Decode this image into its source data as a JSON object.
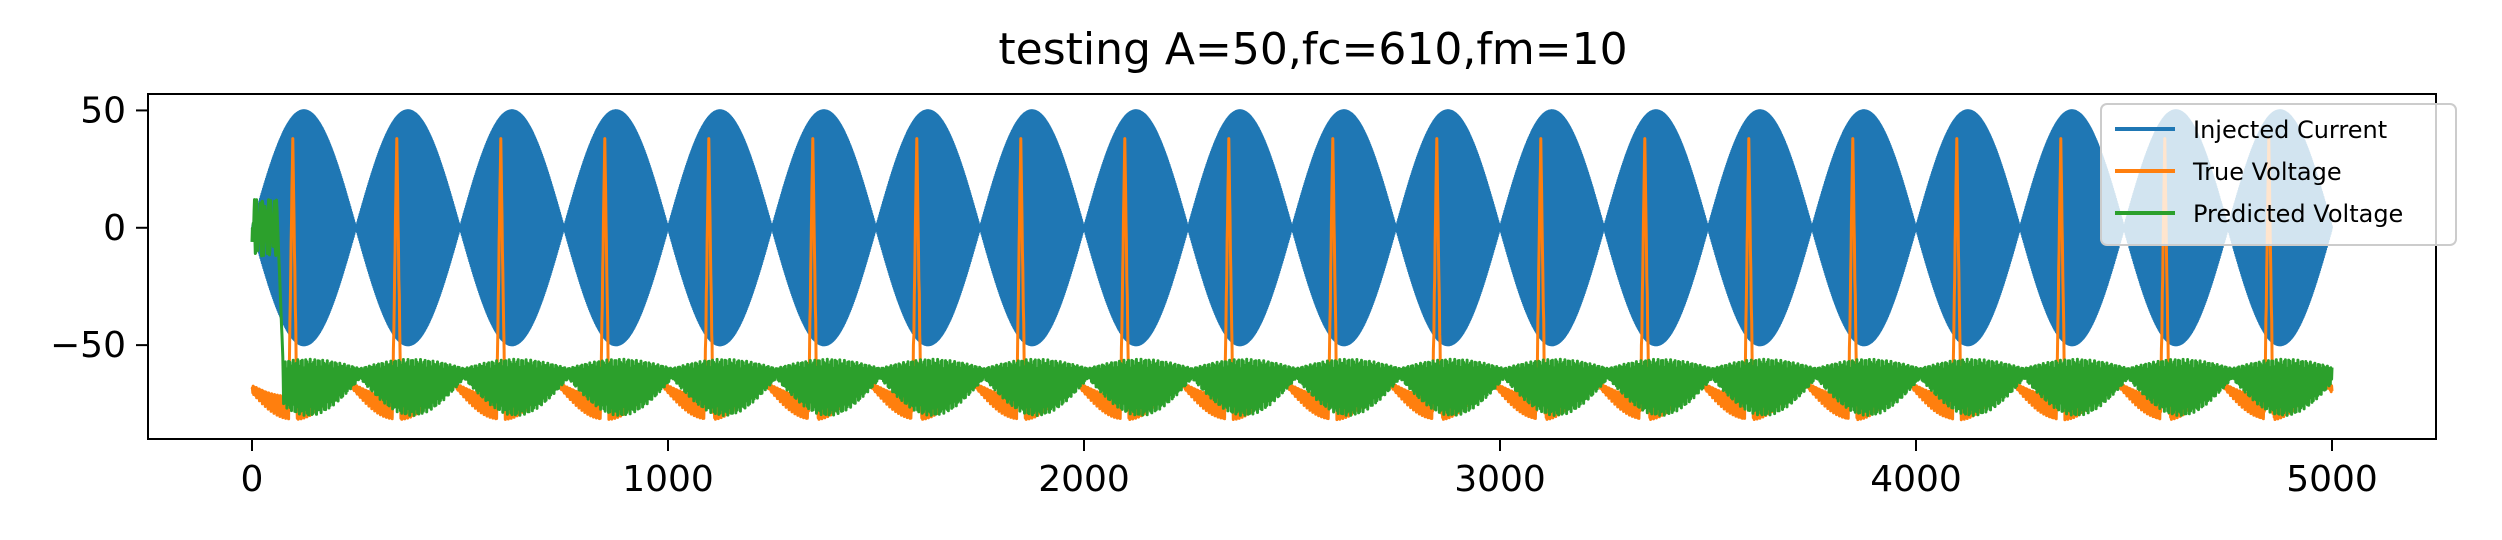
{
  "chart_data": {
    "type": "line",
    "title": "testing A=50,fc=610,fm=10",
    "xlabel": "",
    "ylabel": "",
    "xlim": [
      -250,
      5250
    ],
    "ylim": [
      -90,
      57
    ],
    "xticks": [
      0,
      1000,
      2000,
      3000,
      4000,
      5000
    ],
    "xtick_labels": [
      "0",
      "1000",
      "2000",
      "3000",
      "4000",
      "5000"
    ],
    "yticks": [
      50,
      0,
      -50
    ],
    "ytick_labels": [
      "50",
      "0",
      "−50"
    ],
    "grid": false,
    "legend_position": "top-right",
    "series": [
      {
        "name": "Injected Current",
        "color": "#1f77b4",
        "model": "amplitude-modulated carrier",
        "amplitude": 50,
        "x_range": [
          0,
          5000
        ],
        "period_envelope": 250
      },
      {
        "name": "True Voltage",
        "color": "#ff7f0e",
        "model": "baseline near -65 with sharp spikes to ~38 once per envelope period",
        "baseline": -65,
        "peak": 38,
        "trough": -83,
        "x_range": [
          0,
          5000
        ],
        "period": 250
      },
      {
        "name": "Predicted Voltage",
        "color": "#2ca02c",
        "model": "initial transient near 0 then oscillating between about -57 and -80",
        "initial_range": [
          -10,
          10
        ],
        "upper": -57,
        "lower": -80,
        "x_range": [
          0,
          5000
        ],
        "period": 250
      }
    ]
  }
}
